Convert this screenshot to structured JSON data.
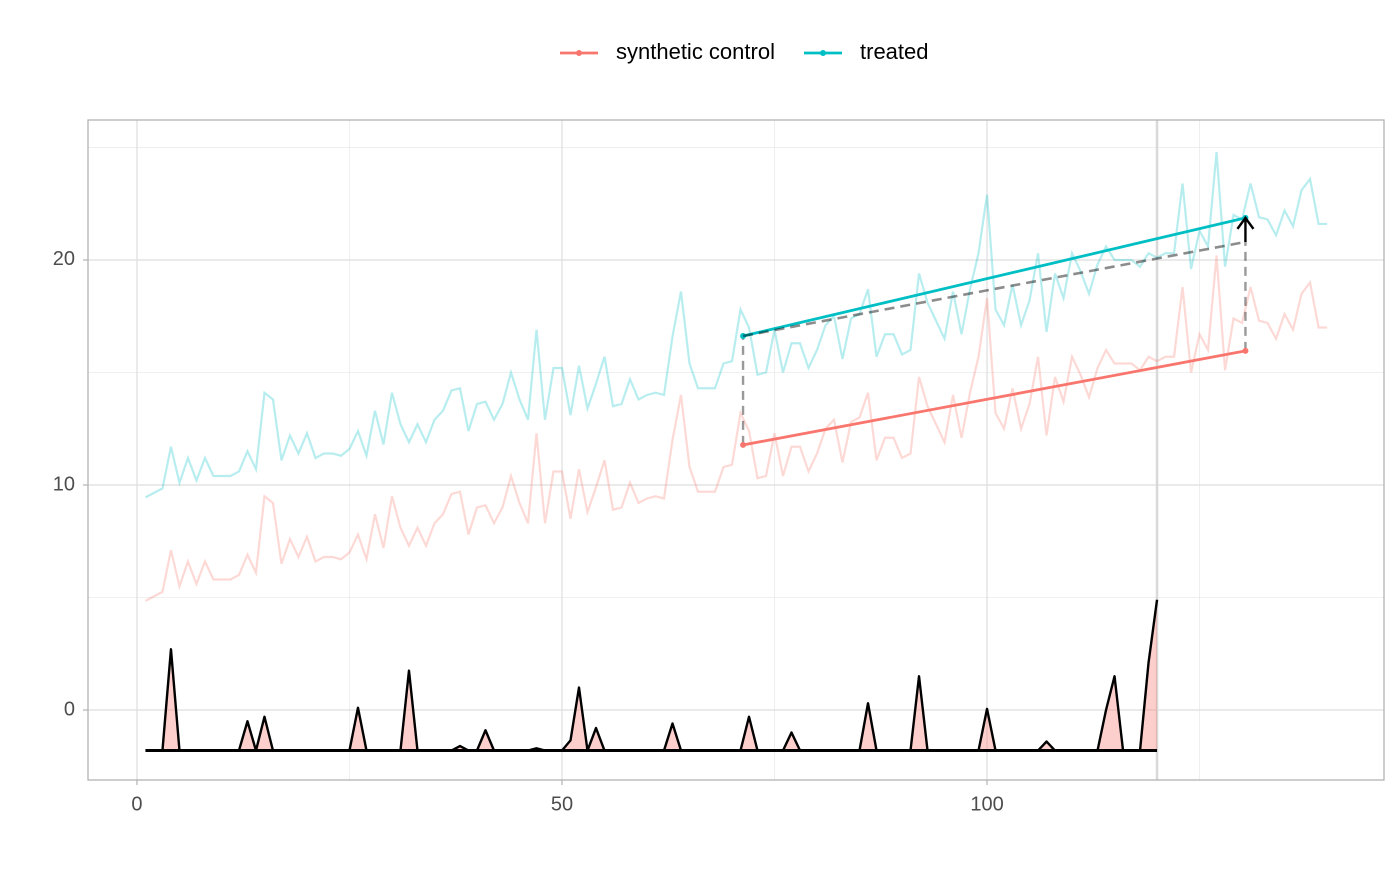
{
  "chart_data": {
    "type": "line",
    "x": [
      1,
      2,
      3,
      4,
      5,
      6,
      7,
      8,
      9,
      10,
      11,
      12,
      13,
      14,
      15,
      16,
      17,
      18,
      19,
      20,
      21,
      22,
      23,
      24,
      25,
      26,
      27,
      28,
      29,
      30,
      31,
      32,
      33,
      34,
      35,
      36,
      37,
      38,
      39,
      40,
      41,
      42,
      43,
      44,
      45,
      46,
      47,
      48,
      49,
      50,
      51,
      52,
      53,
      54,
      55,
      56,
      57,
      58,
      59,
      60,
      61,
      62,
      63,
      64,
      65,
      66,
      67,
      68,
      69,
      70,
      71,
      72,
      73,
      74,
      75,
      76,
      77,
      78,
      79,
      80,
      81,
      82,
      83,
      84,
      85,
      86,
      87,
      88,
      89,
      90,
      91,
      92,
      93,
      94,
      95,
      96,
      97,
      98,
      99,
      100,
      101,
      102,
      103,
      104,
      105,
      106,
      107,
      108,
      109,
      110,
      111,
      112,
      113,
      114,
      115,
      116,
      117,
      118,
      119,
      120,
      121,
      122,
      123,
      124,
      125,
      126,
      127,
      128,
      129,
      130,
      131,
      132,
      133,
      134,
      135,
      136,
      137,
      138,
      139,
      140
    ],
    "series": [
      {
        "name": "synthetic control",
        "color": "#f8766d",
        "values": [
          4.85,
          5.05,
          5.25,
          7.1,
          5.5,
          6.6,
          5.6,
          6.6,
          5.8,
          5.8,
          5.8,
          6.0,
          6.9,
          6.1,
          9.5,
          9.2,
          6.5,
          7.6,
          6.8,
          7.7,
          6.6,
          6.8,
          6.8,
          6.7,
          7.0,
          7.8,
          6.7,
          8.7,
          7.2,
          9.5,
          8.1,
          7.3,
          8.1,
          7.3,
          8.3,
          8.7,
          9.6,
          9.7,
          7.8,
          9.0,
          9.1,
          8.3,
          9.0,
          10.4,
          9.2,
          8.3,
          12.3,
          8.3,
          10.6,
          10.6,
          8.5,
          10.7,
          8.8,
          9.9,
          11.1,
          8.9,
          9.0,
          10.1,
          9.2,
          9.4,
          9.5,
          9.4,
          12.0,
          14.0,
          10.8,
          9.7,
          9.7,
          9.7,
          10.8,
          10.9,
          13.2,
          12.4,
          10.3,
          10.4,
          12.3,
          10.4,
          11.7,
          11.7,
          10.6,
          11.4,
          12.5,
          12.9,
          11.0,
          12.8,
          13.0,
          14.1,
          11.1,
          12.1,
          12.1,
          11.2,
          11.4,
          14.8,
          13.5,
          12.7,
          11.9,
          14.0,
          12.1,
          14.1,
          15.7,
          18.3,
          13.2,
          12.5,
          14.3,
          12.5,
          13.6,
          15.7,
          12.2,
          14.8,
          13.7,
          15.7,
          14.9,
          13.9,
          15.2,
          16.0,
          15.4,
          15.4,
          15.4,
          15.1,
          15.7,
          15.5,
          15.7,
          15.7,
          18.8,
          15.0,
          16.7,
          16.0,
          20.2,
          15.1,
          17.4,
          17.2,
          18.8,
          17.3,
          17.2,
          16.5,
          17.6,
          16.9,
          18.5,
          19.0,
          17.0,
          17.0
        ]
      },
      {
        "name": "treated",
        "color": "#00bfc4",
        "values": [
          9.45,
          9.65,
          9.85,
          11.7,
          10.1,
          11.2,
          10.2,
          11.2,
          10.4,
          10.4,
          10.4,
          10.6,
          11.5,
          10.7,
          14.1,
          13.8,
          11.1,
          12.2,
          11.4,
          12.3,
          11.2,
          11.4,
          11.4,
          11.3,
          11.6,
          12.4,
          11.3,
          13.3,
          11.8,
          14.1,
          12.7,
          11.9,
          12.7,
          11.9,
          12.9,
          13.3,
          14.2,
          14.3,
          12.4,
          13.6,
          13.7,
          12.9,
          13.6,
          15.0,
          13.8,
          12.9,
          16.9,
          12.9,
          15.2,
          15.2,
          13.1,
          15.3,
          13.4,
          14.5,
          15.7,
          13.5,
          13.6,
          14.7,
          13.8,
          14.0,
          14.1,
          14.0,
          16.6,
          18.6,
          15.4,
          14.3,
          14.3,
          14.3,
          15.4,
          15.5,
          17.8,
          17.0,
          14.9,
          15.0,
          16.9,
          15.0,
          16.3,
          16.3,
          15.2,
          16.0,
          17.1,
          17.5,
          15.6,
          17.4,
          17.6,
          18.7,
          15.7,
          16.7,
          16.7,
          15.8,
          16.0,
          19.4,
          18.1,
          17.3,
          16.5,
          18.6,
          16.7,
          18.7,
          20.3,
          22.9,
          17.8,
          17.1,
          18.9,
          17.1,
          18.2,
          20.3,
          16.8,
          19.4,
          18.3,
          20.3,
          19.5,
          18.5,
          19.8,
          20.6,
          20.0,
          20.0,
          20.0,
          19.7,
          20.3,
          20.1,
          20.3,
          20.3,
          23.4,
          19.6,
          21.3,
          20.6,
          24.8,
          19.7,
          22.0,
          21.8,
          23.4,
          21.9,
          21.8,
          21.1,
          22.2,
          21.5,
          23.1,
          23.6,
          21.6,
          21.6
        ]
      }
    ],
    "weights": [
      -1.8,
      -1.8,
      -1.8,
      2.7,
      -1.8,
      -1.8,
      -1.8,
      -1.8,
      -1.8,
      -1.8,
      -1.8,
      -1.8,
      -0.5,
      -1.8,
      -0.3,
      -1.8,
      -1.8,
      -1.8,
      -1.8,
      -1.8,
      -1.8,
      -1.8,
      -1.8,
      -1.8,
      -1.8,
      0.1,
      -1.8,
      -1.8,
      -1.8,
      -1.8,
      -1.8,
      1.75,
      -1.8,
      -1.8,
      -1.8,
      -1.8,
      -1.8,
      -1.6,
      -1.8,
      -1.8,
      -0.9,
      -1.8,
      -1.8,
      -1.8,
      -1.8,
      -1.8,
      -1.7,
      -1.8,
      -1.8,
      -1.8,
      -1.35,
      1.0,
      -1.8,
      -0.8,
      -1.8,
      -1.8,
      -1.8,
      -1.8,
      -1.8,
      -1.8,
      -1.8,
      -1.8,
      -0.6,
      -1.8,
      -1.8,
      -1.8,
      -1.8,
      -1.8,
      -1.8,
      -1.8,
      -1.8,
      -0.3,
      -1.8,
      -1.8,
      -1.8,
      -1.8,
      -1.0,
      -1.8,
      -1.8,
      -1.8,
      -1.8,
      -1.8,
      -1.8,
      -1.8,
      -1.8,
      0.3,
      -1.8,
      -1.8,
      -1.8,
      -1.8,
      -1.8,
      1.5,
      -1.8,
      -1.8,
      -1.8,
      -1.8,
      -1.8,
      -1.8,
      -1.8,
      0.05,
      -1.8,
      -1.8,
      -1.8,
      -1.8,
      -1.8,
      -1.8,
      -1.4,
      -1.8,
      -1.8,
      -1.8,
      -1.8,
      -1.8,
      -1.8,
      0.0,
      1.5,
      -1.8,
      -1.8,
      -1.8,
      2.1,
      4.9,
      null,
      null,
      null,
      null,
      null,
      null,
      null,
      null,
      null,
      null,
      null,
      null,
      null,
      null,
      null,
      null,
      null,
      null,
      null,
      null
    ],
    "weights_base": -1.8,
    "weights_color": "#f8766d",
    "treatment_start": 120,
    "segments": {
      "x": [
        71.3,
        130.4
      ],
      "treated": [
        16.62,
        21.87
      ],
      "synthetic_control": [
        11.78,
        15.96
      ],
      "counterfactual": [
        16.62,
        20.8
      ]
    },
    "xlim": [
      -5.76,
      146.7
    ],
    "ylim": [
      -3.11,
      26.22
    ],
    "xticks": [
      0,
      50,
      100
    ],
    "yticks": [
      0,
      10,
      20
    ],
    "x_minor_ticks": [
      25,
      75,
      125
    ],
    "y_minor_ticks": [
      5,
      15,
      25
    ],
    "grid": true,
    "legend": "top"
  }
}
